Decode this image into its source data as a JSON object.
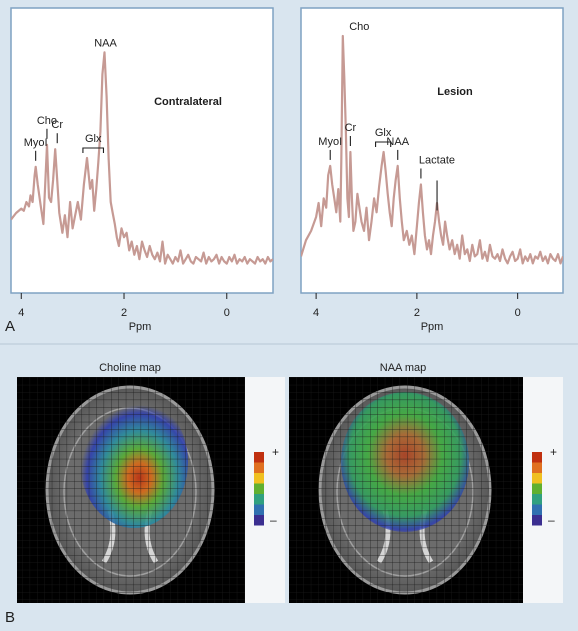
{
  "figure": {
    "panel_a_letter": "A",
    "panel_b_letter": "B"
  },
  "chart_data": [
    {
      "type": "line",
      "title": "Contralateral",
      "xlabel": "Ppm",
      "ylabel": "",
      "xlim": [
        4.2,
        -0.9
      ],
      "xreversed": true,
      "ylim": [
        0,
        1
      ],
      "xticks": [
        4,
        2,
        0
      ],
      "grid": false,
      "series": [
        {
          "color": "#c69a94",
          "x": [
            4.2,
            4.1,
            4.0,
            3.95,
            3.9,
            3.85,
            3.82,
            3.78,
            3.74,
            3.72,
            3.68,
            3.62,
            3.57,
            3.53,
            3.5,
            3.46,
            3.42,
            3.38,
            3.34,
            3.3,
            3.26,
            3.2,
            3.15,
            3.1,
            3.05,
            3.0,
            2.95,
            2.9,
            2.84,
            2.78,
            2.72,
            2.66,
            2.62,
            2.58,
            2.54,
            2.5,
            2.46,
            2.42,
            2.38,
            2.34,
            2.3,
            2.26,
            2.22,
            2.18,
            2.14,
            2.1,
            2.05,
            2.0,
            1.95,
            1.9,
            1.85,
            1.8,
            1.75,
            1.7,
            1.65,
            1.6,
            1.55,
            1.5,
            1.45,
            1.4,
            1.35,
            1.3,
            1.25,
            1.2,
            1.15,
            1.1,
            1.05,
            1.0,
            0.95,
            0.9,
            0.85,
            0.8,
            0.75,
            0.7,
            0.65,
            0.6,
            0.55,
            0.5,
            0.45,
            0.4,
            0.35,
            0.3,
            0.25,
            0.2,
            0.15,
            0.1,
            0.05,
            0.0,
            -0.05,
            -0.1,
            -0.15,
            -0.2,
            -0.25,
            -0.3,
            -0.35,
            -0.4,
            -0.45,
            -0.5,
            -0.55,
            -0.6,
            -0.65,
            -0.7,
            -0.75,
            -0.8,
            -0.85,
            -0.9
          ],
          "y": [
            0.22,
            0.25,
            0.27,
            0.26,
            0.3,
            0.28,
            0.33,
            0.3,
            0.42,
            0.46,
            0.38,
            0.28,
            0.2,
            0.4,
            0.56,
            0.32,
            0.3,
            0.4,
            0.54,
            0.4,
            0.25,
            0.16,
            0.24,
            0.14,
            0.3,
            0.18,
            0.24,
            0.3,
            0.22,
            0.38,
            0.5,
            0.36,
            0.4,
            0.26,
            0.36,
            0.48,
            0.62,
            0.88,
            0.98,
            0.78,
            0.5,
            0.3,
            0.25,
            0.2,
            0.14,
            0.1,
            0.18,
            0.14,
            0.16,
            0.08,
            0.12,
            0.06,
            0.1,
            0.04,
            0.12,
            0.08,
            0.05,
            0.1,
            0.06,
            0.04,
            0.07,
            0.03,
            0.12,
            0.02,
            0.06,
            0.04,
            0.02,
            0.05,
            0.03,
            0.08,
            0.02,
            0.04,
            0.06,
            0.03,
            0.02,
            0.05,
            0.04,
            0.03,
            0.07,
            0.02,
            0.05,
            0.03,
            0.04,
            0.06,
            0.02,
            0.05,
            0.03,
            0.02,
            0.05,
            0.03,
            0.06,
            0.02,
            0.04,
            0.03,
            0.05,
            0.02,
            0.04,
            0.03,
            0.02,
            0.05,
            0.03,
            0.04,
            0.02,
            0.05,
            0.03,
            0.04
          ]
        }
      ],
      "peaks": [
        {
          "label": "MyoI",
          "ppm": 3.72,
          "height": 0.46,
          "marker": "tick"
        },
        {
          "label": "Cho",
          "ppm": 3.5,
          "height": 0.56,
          "marker": "tick"
        },
        {
          "label": "Cr",
          "ppm": 3.3,
          "height": 0.54,
          "marker": "tick"
        },
        {
          "label": "Glx",
          "ppm": 2.6,
          "height": 0.5,
          "marker": "bracket",
          "ppm_start": 2.8,
          "ppm_end": 2.4
        },
        {
          "label": "NAA",
          "ppm": 2.36,
          "height": 0.98,
          "marker": "none"
        }
      ]
    },
    {
      "type": "line",
      "title": "Lesion",
      "xlabel": "Ppm",
      "ylabel": "",
      "xlim": [
        4.3,
        -0.9
      ],
      "xreversed": true,
      "ylim": [
        0,
        1
      ],
      "xticks": [
        4,
        2,
        0
      ],
      "grid": false,
      "series": [
        {
          "color": "#c69a94",
          "x": [
            4.3,
            4.2,
            4.1,
            4.0,
            3.95,
            3.9,
            3.85,
            3.8,
            3.76,
            3.72,
            3.68,
            3.64,
            3.6,
            3.56,
            3.52,
            3.5,
            3.47,
            3.44,
            3.41,
            3.38,
            3.35,
            3.32,
            3.29,
            3.26,
            3.22,
            3.18,
            3.14,
            3.1,
            3.05,
            3.0,
            2.95,
            2.9,
            2.85,
            2.8,
            2.75,
            2.7,
            2.66,
            2.62,
            2.58,
            2.54,
            2.5,
            2.46,
            2.42,
            2.38,
            2.34,
            2.3,
            2.26,
            2.2,
            2.15,
            2.1,
            2.05,
            2.0,
            1.96,
            1.92,
            1.88,
            1.84,
            1.8,
            1.76,
            1.72,
            1.68,
            1.64,
            1.6,
            1.56,
            1.52,
            1.48,
            1.44,
            1.4,
            1.35,
            1.3,
            1.25,
            1.2,
            1.15,
            1.1,
            1.05,
            1.0,
            0.95,
            0.9,
            0.85,
            0.8,
            0.75,
            0.7,
            0.65,
            0.6,
            0.55,
            0.5,
            0.45,
            0.4,
            0.35,
            0.3,
            0.25,
            0.2,
            0.15,
            0.1,
            0.05,
            0.0,
            -0.05,
            -0.1,
            -0.15,
            -0.2,
            -0.25,
            -0.3,
            -0.35,
            -0.4,
            -0.45,
            -0.5,
            -0.55,
            -0.6,
            -0.65,
            -0.7,
            -0.75,
            -0.8,
            -0.85,
            -0.9
          ],
          "y": [
            0.05,
            0.12,
            0.16,
            0.22,
            0.28,
            0.18,
            0.3,
            0.26,
            0.4,
            0.44,
            0.36,
            0.3,
            0.24,
            0.34,
            0.2,
            0.46,
            1.0,
            0.82,
            0.6,
            0.3,
            0.22,
            0.5,
            0.3,
            0.16,
            0.2,
            0.32,
            0.26,
            0.2,
            0.16,
            0.26,
            0.12,
            0.2,
            0.3,
            0.24,
            0.35,
            0.44,
            0.5,
            0.42,
            0.32,
            0.24,
            0.18,
            0.3,
            0.38,
            0.44,
            0.3,
            0.2,
            0.12,
            0.16,
            0.1,
            0.14,
            0.06,
            0.18,
            0.28,
            0.36,
            0.24,
            0.14,
            0.08,
            0.12,
            0.06,
            0.14,
            0.2,
            0.28,
            0.2,
            0.14,
            0.1,
            0.2,
            0.14,
            0.08,
            0.12,
            0.06,
            0.1,
            0.04,
            0.14,
            0.06,
            0.08,
            0.03,
            0.1,
            0.05,
            0.06,
            0.12,
            0.04,
            0.07,
            0.03,
            0.1,
            0.05,
            0.04,
            0.06,
            0.03,
            0.08,
            0.04,
            0.02,
            0.05,
            0.07,
            0.03,
            0.04,
            0.08,
            0.02,
            0.05,
            0.03,
            0.06,
            0.02,
            0.05,
            0.04,
            0.07,
            0.03,
            0.05,
            0.02,
            0.06,
            0.04,
            0.03,
            0.06,
            0.02,
            0.05
          ]
        }
      ],
      "peaks": [
        {
          "label": "Cho",
          "ppm": 3.46,
          "height": 1.0,
          "marker": "none"
        },
        {
          "label": "MyoI",
          "ppm": 3.72,
          "height": 0.44,
          "marker": "tick"
        },
        {
          "label": "Cr",
          "ppm": 3.32,
          "height": 0.5,
          "marker": "tick"
        },
        {
          "label": "Glx",
          "ppm": 2.66,
          "height": 0.5,
          "marker": "bracket",
          "ppm_start": 2.82,
          "ppm_end": 2.52
        },
        {
          "label": "NAA",
          "ppm": 2.38,
          "height": 0.44,
          "marker": "tick"
        },
        {
          "label": "Lactate",
          "ppm": 1.92,
          "height": 0.36,
          "marker": "tick2",
          "ppm_second": 1.6
        }
      ]
    },
    {
      "type": "heatmap",
      "title": "Choline map",
      "colorbar": {
        "max_label": "+",
        "min_label": "–",
        "colors": [
          "#c03010",
          "#e07020",
          "#f0c020",
          "#60b030",
          "#30a080",
          "#3070b0",
          "#3a2e90"
        ]
      },
      "hotspot": "center-left",
      "gradient": [
        "#c03010",
        "#e0a020",
        "#60c040",
        "#2090a0",
        "#3040b0"
      ]
    },
    {
      "type": "heatmap",
      "title": "NAA map",
      "colorbar": {
        "max_label": "+",
        "min_label": "–",
        "colors": [
          "#c03010",
          "#e07020",
          "#f0c020",
          "#60b030",
          "#30a080",
          "#3070b0",
          "#3a2e90"
        ]
      },
      "hotspot": "broad",
      "gradient": [
        "#c03010",
        "#e0a020",
        "#60c040",
        "#2090a0",
        "#3040b0"
      ]
    }
  ],
  "colors": {
    "page_bg": "#d9e5ef",
    "plot_border": "#7fa2c2",
    "plot_bg": "#ffffff",
    "spectrum_line": "#c69a94"
  }
}
